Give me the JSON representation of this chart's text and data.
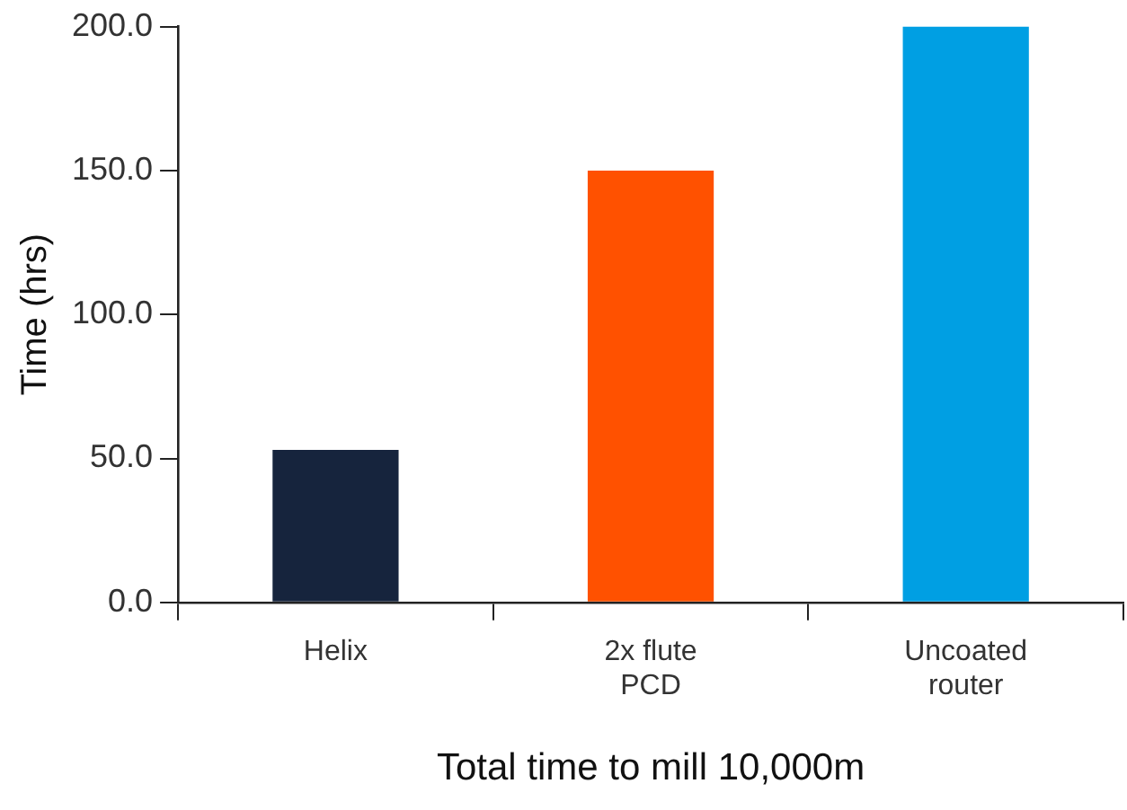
{
  "chart_data": {
    "type": "bar",
    "xlabel": "Total time to mill 10,000m",
    "ylabel": "Time (hrs)",
    "categories": [
      "Helix",
      "2x flute\nPCD",
      "Uncoated\nrouter"
    ],
    "values": [
      53,
      150,
      200
    ],
    "colors": [
      "#16243d",
      "#ff5100",
      "#009fe3"
    ],
    "ylim": [
      0,
      200
    ],
    "yticks": [
      {
        "value": 0,
        "label": "0.0"
      },
      {
        "value": 50,
        "label": "50.0"
      },
      {
        "value": 100,
        "label": "100.0"
      },
      {
        "value": 150,
        "label": "150.0"
      },
      {
        "value": 200,
        "label": "200.0"
      }
    ],
    "grid": false,
    "legend": false
  }
}
